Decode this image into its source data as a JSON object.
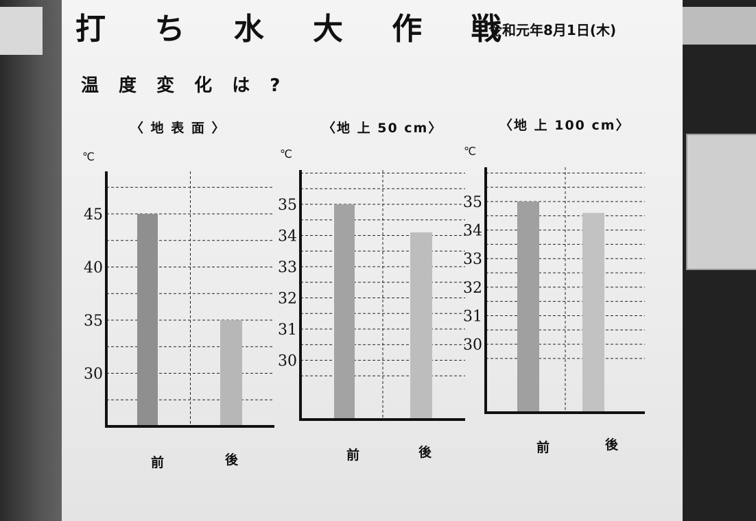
{
  "poster": {
    "title": "打 ち 水 大 作 戦",
    "date": "令和元年8月1日(木)",
    "question": "温 度 変 化 は ?"
  },
  "chart_data": [
    {
      "type": "bar",
      "title": "〈 地 表 面 〉",
      "unit": "℃",
      "categories": [
        "前",
        "後"
      ],
      "values": [
        45,
        35
      ],
      "ylim": [
        25,
        49
      ],
      "ticks": [
        30,
        35,
        40,
        45
      ],
      "tick_labels": [
        "30",
        "35",
        "40",
        "45"
      ],
      "grid": true,
      "bar_colors": [
        "#8f8f8f",
        "#b7b7b7"
      ]
    },
    {
      "type": "bar",
      "title": "〈地 上 50 cm〉",
      "unit": "℃",
      "categories": [
        "前",
        "後"
      ],
      "values": [
        35,
        34.1
      ],
      "ylim": [
        28.1,
        36.1
      ],
      "ticks": [
        30,
        31,
        32,
        33,
        34,
        35
      ],
      "tick_labels": [
        "30",
        "31",
        "32",
        "33",
        "34",
        "35"
      ],
      "grid": true,
      "bar_colors": [
        "#a3a3a3",
        "#bdbdbd"
      ]
    },
    {
      "type": "bar",
      "title": "〈地 上 100 cm〉",
      "unit": "℃",
      "categories": [
        "前",
        "後"
      ],
      "values": [
        35,
        34.6
      ],
      "ylim": [
        27.6,
        36.2
      ],
      "ticks": [
        30,
        31,
        32,
        33,
        34,
        35
      ],
      "tick_labels": [
        "30",
        "31",
        "32",
        "33",
        "34",
        "35"
      ],
      "grid": true,
      "bar_colors": [
        "#a0a0a0",
        "#c2c2c2"
      ]
    }
  ]
}
